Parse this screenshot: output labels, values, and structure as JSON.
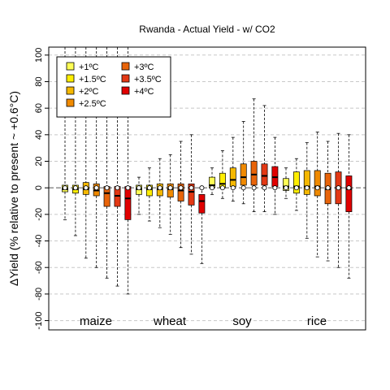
{
  "chart_data": {
    "type": "box",
    "title": "Rwanda - Actual Yield - w/ CO2",
    "ylabel": "ΔYield (% relative to present ~ +0.6°C)",
    "ylim": [
      -107,
      106
    ],
    "yticks": [
      -100,
      -80,
      -60,
      -40,
      -20,
      0,
      20,
      40,
      60,
      80,
      100
    ],
    "grid": true,
    "legend_position": "top-left",
    "legend": [
      "+1ºC",
      "+1.5ºC",
      "+2ºC",
      "+2.5ºC",
      "+3ºC",
      "+3.5ºC",
      "+4ºC"
    ],
    "colors": [
      "#FFFF55",
      "#FFEE00",
      "#F5B800",
      "#F08A00",
      "#E8640A",
      "#E33814",
      "#E00000"
    ],
    "crops": [
      "maize",
      "wheat",
      "soy",
      "rice"
    ],
    "boxes": [
      {
        "crop": "maize",
        "level": 0,
        "min": -24,
        "q1": -3,
        "median": -1,
        "q3": 2,
        "max": 107
      },
      {
        "crop": "maize",
        "level": 1,
        "min": -36,
        "q1": -4,
        "median": -1,
        "q3": 2,
        "max": 107
      },
      {
        "crop": "maize",
        "level": 2,
        "min": -53,
        "q1": -5,
        "median": -1,
        "q3": 4,
        "max": 107
      },
      {
        "crop": "maize",
        "level": 3,
        "min": -60,
        "q1": -6,
        "median": -2,
        "q3": 3,
        "max": 107
      },
      {
        "crop": "maize",
        "level": 4,
        "min": -68,
        "q1": -14,
        "median": -4,
        "q3": 1,
        "max": 107
      },
      {
        "crop": "maize",
        "level": 5,
        "min": -74,
        "q1": -14,
        "median": -6,
        "q3": 1,
        "max": 107
      },
      {
        "crop": "maize",
        "level": 6,
        "min": -80,
        "q1": -24,
        "median": -8,
        "q3": 1,
        "max": 107
      },
      {
        "crop": "wheat",
        "level": 0,
        "min": -20,
        "q1": -5,
        "median": -1,
        "q3": 2,
        "max": 8
      },
      {
        "crop": "wheat",
        "level": 1,
        "min": -25,
        "q1": -6,
        "median": -1,
        "q3": 2,
        "max": 15
      },
      {
        "crop": "wheat",
        "level": 2,
        "min": -30,
        "q1": -6,
        "median": -1,
        "q3": 3,
        "max": 22
      },
      {
        "crop": "wheat",
        "level": 3,
        "min": -35,
        "q1": -7,
        "median": -1,
        "q3": 3,
        "max": 25
      },
      {
        "crop": "wheat",
        "level": 4,
        "min": -45,
        "q1": -10,
        "median": -2,
        "q3": 3,
        "max": 35
      },
      {
        "crop": "wheat",
        "level": 5,
        "min": -50,
        "q1": -13,
        "median": -3,
        "q3": 3,
        "max": 40
      },
      {
        "crop": "wheat",
        "level": 6,
        "min": -57,
        "q1": -19,
        "median": -10,
        "q3": -5,
        "max": 1
      },
      {
        "crop": "soy",
        "level": 0,
        "min": -5,
        "q1": 0,
        "median": 2,
        "q3": 8,
        "max": 15
      },
      {
        "crop": "soy",
        "level": 1,
        "min": -8,
        "q1": 0,
        "median": 3,
        "q3": 11,
        "max": 28
      },
      {
        "crop": "soy",
        "level": 2,
        "min": -10,
        "q1": 1,
        "median": 6,
        "q3": 15,
        "max": 38
      },
      {
        "crop": "soy",
        "level": 3,
        "min": -12,
        "q1": 2,
        "median": 8,
        "q3": 18,
        "max": 50
      },
      {
        "crop": "soy",
        "level": 4,
        "min": -18,
        "q1": 2,
        "median": 10,
        "q3": 20,
        "max": 67
      },
      {
        "crop": "soy",
        "level": 5,
        "min": -18,
        "q1": 2,
        "median": 9,
        "q3": 18,
        "max": 62
      },
      {
        "crop": "soy",
        "level": 6,
        "min": -20,
        "q1": 1,
        "median": 8,
        "q3": 16,
        "max": 38
      },
      {
        "crop": "rice",
        "level": 0,
        "min": -8,
        "q1": -2,
        "median": 1,
        "q3": 7,
        "max": 15
      },
      {
        "crop": "rice",
        "level": 1,
        "min": -17,
        "q1": -4,
        "median": 1,
        "q3": 12,
        "max": 22
      },
      {
        "crop": "rice",
        "level": 2,
        "min": -38,
        "q1": -5,
        "median": 1,
        "q3": 13,
        "max": 34
      },
      {
        "crop": "rice",
        "level": 3,
        "min": -52,
        "q1": -6,
        "median": 1,
        "q3": 13,
        "max": 42
      },
      {
        "crop": "rice",
        "level": 4,
        "min": -55,
        "q1": -12,
        "median": -1,
        "q3": 11,
        "max": 35
      },
      {
        "crop": "rice",
        "level": 5,
        "min": -60,
        "q1": -12,
        "median": 0,
        "q3": 12,
        "max": 41
      },
      {
        "crop": "rice",
        "level": 6,
        "min": -68,
        "q1": -18,
        "median": -1,
        "q3": 9,
        "max": 40
      }
    ]
  }
}
